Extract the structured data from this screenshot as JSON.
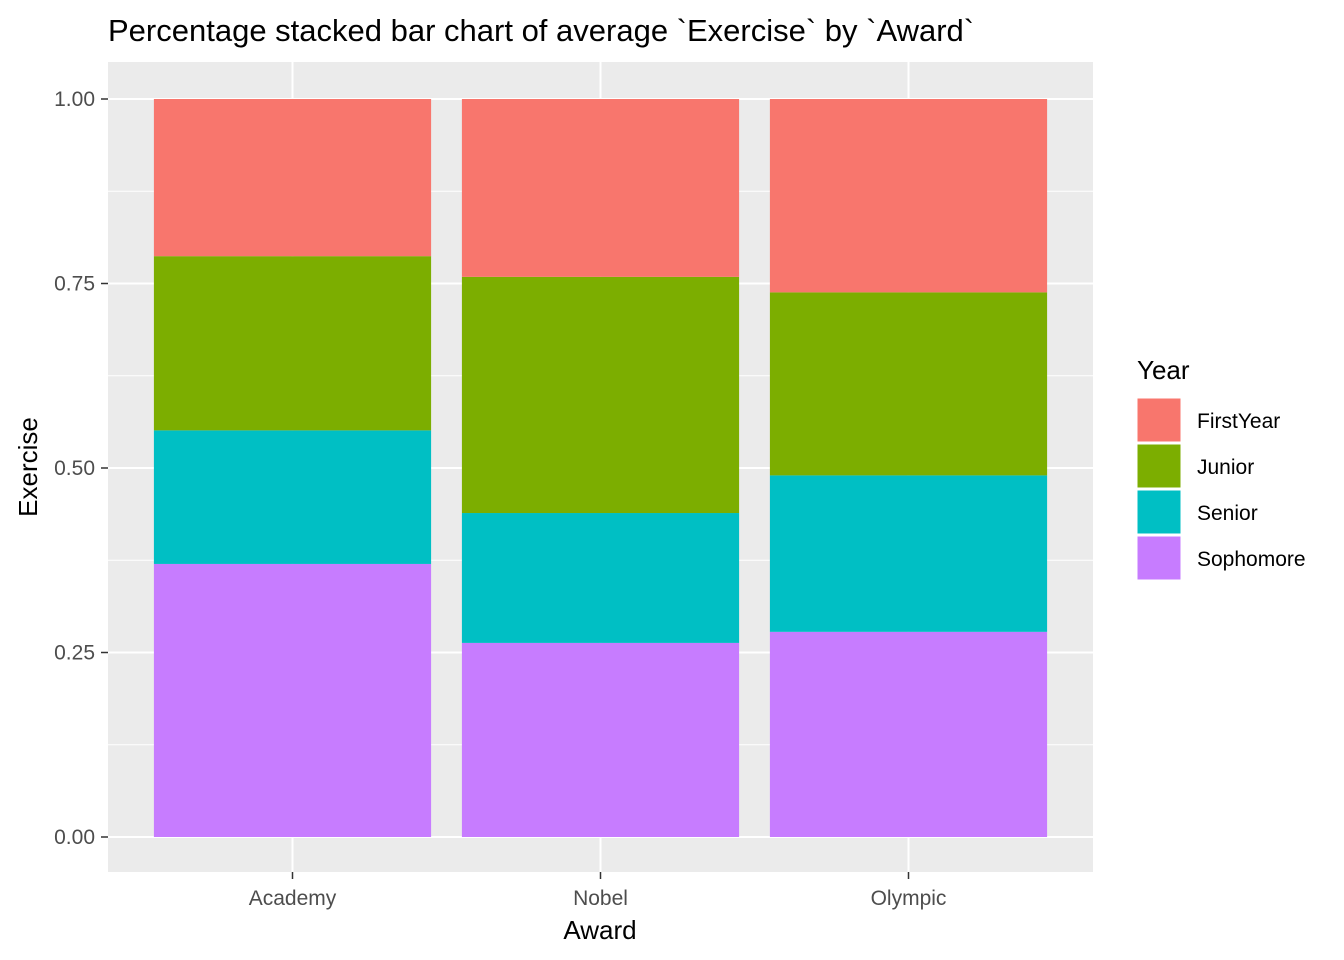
{
  "chart_data": {
    "type": "bar",
    "stacked": true,
    "percentage": true,
    "title": "Percentage stacked bar chart of average `Exercise` by `Award`",
    "xlabel": "Award",
    "ylabel": "Exercise",
    "ylim": [
      0,
      1
    ],
    "yticks": [
      "0.00",
      "0.25",
      "0.50",
      "0.75",
      "1.00"
    ],
    "ytick_values": [
      0,
      0.25,
      0.5,
      0.75,
      1.0
    ],
    "categories": [
      "Academy",
      "Nobel",
      "Olympic"
    ],
    "grid": true,
    "legend": {
      "title": "Year",
      "placement": "right"
    },
    "series": [
      {
        "name": "FirstYear",
        "color": "#F8766D",
        "values": [
          0.213,
          0.241,
          0.262
        ]
      },
      {
        "name": "Junior",
        "color": "#7CAE00",
        "values": [
          0.236,
          0.32,
          0.248
        ]
      },
      {
        "name": "Senior",
        "color": "#00BFC4",
        "values": [
          0.181,
          0.176,
          0.212
        ]
      },
      {
        "name": "Sophomore",
        "color": "#C77CFF",
        "values": [
          0.37,
          0.263,
          0.278
        ]
      }
    ],
    "stack_order_bottom_to_top": [
      "Sophomore",
      "Senior",
      "Junior",
      "FirstYear"
    ],
    "panel_color": "#EBEBEB",
    "grid_color": "#FFFFFF"
  }
}
